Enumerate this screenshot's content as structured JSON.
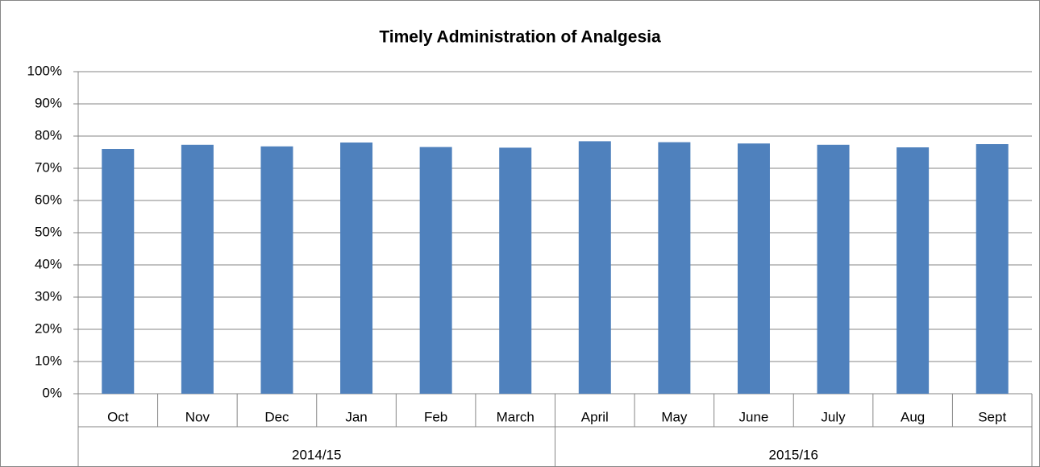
{
  "chart_data": {
    "type": "bar",
    "title": "Timely Administration of Analgesia",
    "categories": [
      "Oct",
      "Nov",
      "Dec",
      "Jan",
      "Feb",
      "March",
      "April",
      "May",
      "June",
      "July",
      "Aug",
      "Sept"
    ],
    "groups": [
      {
        "label": "2014/15",
        "span": 6
      },
      {
        "label": "2015/16",
        "span": 6
      }
    ],
    "values": [
      76,
      77.3,
      76.8,
      78,
      76.6,
      76.4,
      78.4,
      78.1,
      77.7,
      77.3,
      76.5,
      77.5
    ],
    "color": "#4f81bd",
    "ylim": [
      0,
      100
    ],
    "yticks": [
      {
        "value": 0,
        "label": "0%"
      },
      {
        "value": 10,
        "label": "10%"
      },
      {
        "value": 20,
        "label": "20%"
      },
      {
        "value": 30,
        "label": "30%"
      },
      {
        "value": 40,
        "label": "40%"
      },
      {
        "value": 50,
        "label": "50%"
      },
      {
        "value": 60,
        "label": "60%"
      },
      {
        "value": 70,
        "label": "70%"
      },
      {
        "value": 80,
        "label": "80%"
      },
      {
        "value": 90,
        "label": "90%"
      },
      {
        "value": 100,
        "label": "100%"
      }
    ],
    "grid": true
  }
}
